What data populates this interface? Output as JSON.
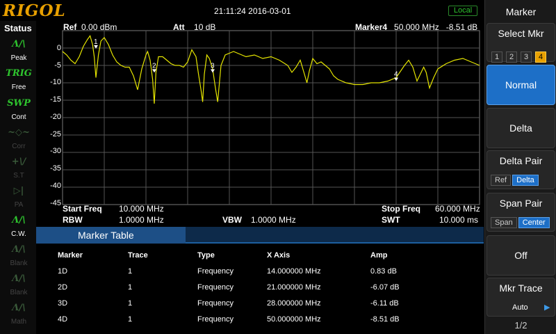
{
  "top": {
    "logo": "RIGOL",
    "datetime": "21:11:24 2016-03-01",
    "local": "Local"
  },
  "status": {
    "title": "Status",
    "items": [
      {
        "icon": "Λ/\\",
        "label": "Peak",
        "state": "on"
      },
      {
        "icon": "TRIG",
        "label": "Free",
        "state": "on"
      },
      {
        "icon": "SWP",
        "label": "Cont",
        "state": "on"
      },
      {
        "icon": "~◇~",
        "label": "Corr",
        "state": "off"
      },
      {
        "icon": "+\\/",
        "label": "S.T",
        "state": "off"
      },
      {
        "icon": "▷|",
        "label": "PA",
        "state": "off"
      },
      {
        "icon": "Λ/\\",
        "label": "C.W.",
        "state": "on"
      },
      {
        "icon": "Λ/\\",
        "label": "Blank",
        "state": "off"
      },
      {
        "icon": "Λ/\\",
        "label": "Blank",
        "state": "off"
      },
      {
        "icon": "Λ/\\",
        "label": "Math",
        "state": "off"
      }
    ]
  },
  "graph": {
    "ref_label": "Ref",
    "ref_value": "0.00 dBm",
    "att_label": "Att",
    "att_value": "10 dB",
    "marker_label": "Marker4",
    "marker_freq": "50.000 MHz",
    "marker_amp": "-8.51 dB",
    "start_label": "Start Freq",
    "start_value": "10.000 MHz",
    "stop_label": "Stop Freq",
    "stop_value": "60.000 MHz",
    "rbw_label": "RBW",
    "rbw_value": "1.0000 MHz",
    "vbw_label": "VBW",
    "vbw_value": "1.0000 MHz",
    "swt_label": "SWT",
    "swt_value": "10.000 ms",
    "y_labels": [
      "0",
      "-5",
      "-10",
      "-15",
      "-20",
      "-25",
      "-30",
      "-35",
      "-40",
      "-45"
    ],
    "trace_color": "#e6e600"
  },
  "chart_data": {
    "type": "line",
    "xlim": [
      10,
      60
    ],
    "ylim": [
      -45,
      5
    ],
    "x_unit": "MHz",
    "y_unit": "dB",
    "series": [
      {
        "x": [
          10,
          10.5,
          11,
          11.5,
          12,
          12.5,
          13,
          13.3,
          13.6,
          13.8,
          14,
          14.3,
          14.6,
          15,
          15.5,
          16,
          16.5,
          17,
          17.5,
          18,
          18.5,
          19,
          19.5,
          20,
          20.2,
          20.5,
          20.8,
          21,
          21.2,
          21.5,
          22,
          22.5,
          23,
          23.5,
          24,
          24.5,
          25,
          25.5,
          26,
          26.3,
          26.6,
          26.8,
          27,
          27.3,
          27.6,
          28,
          28.3,
          28.6,
          29,
          29.5,
          30,
          30.5,
          31,
          32,
          33,
          34,
          35,
          36,
          37,
          37.5,
          38,
          38.5,
          39,
          39.3,
          39.6,
          40,
          40.5,
          41,
          41.5,
          42,
          42.5,
          43,
          44,
          45,
          46,
          47,
          48,
          49,
          50,
          51,
          51.5,
          52,
          52.5,
          53,
          53.3,
          53.6,
          54,
          54.5,
          55,
          56,
          57,
          58,
          59,
          60
        ],
        "y": [
          -1.0,
          -2.0,
          -3.5,
          -4.5,
          -2.5,
          0.5,
          2.5,
          3.5,
          1.0,
          -2.5,
          -8.5,
          -2.0,
          2.0,
          3.0,
          1.0,
          -2.0,
          -4.0,
          -5.0,
          -5.5,
          -5.5,
          -8.0,
          -12.0,
          -6.0,
          -2.0,
          -1.0,
          -3.5,
          -9.0,
          -16.0,
          -7.0,
          -2.5,
          -2.5,
          -3.5,
          -4.5,
          -5.0,
          -5.0,
          -5.5,
          -4.0,
          -0.5,
          -2.5,
          -7.5,
          -12.0,
          -15.5,
          -7.5,
          -2.0,
          -3.0,
          -6.0,
          -11.0,
          -15.5,
          -5.0,
          -2.0,
          -1.5,
          -1.0,
          -1.5,
          -2.5,
          -2.0,
          -3.0,
          -2.5,
          -3.5,
          -5.0,
          -7.0,
          -5.5,
          -3.5,
          -7.5,
          -10.0,
          -6.5,
          -3.0,
          -4.5,
          -4.0,
          -5.0,
          -6.0,
          -8.0,
          -9.0,
          -10.0,
          -10.5,
          -10.5,
          -10.0,
          -10.0,
          -9.5,
          -8.5,
          -5.0,
          -3.5,
          -5.5,
          -9.5,
          -7.0,
          -5.5,
          -7.0,
          -11.5,
          -8.5,
          -6.0,
          -4.5,
          -3.5,
          -3.0,
          -4.0,
          -5.0
        ]
      }
    ],
    "markers": [
      {
        "label": "1",
        "x": 14,
        "y": 0.83
      },
      {
        "label": "2",
        "x": 21,
        "y": -6.07
      },
      {
        "label": "3",
        "x": 28,
        "y": -6.11
      },
      {
        "label": "4",
        "x": 50,
        "y": -8.51
      }
    ]
  },
  "marker_table": {
    "title": "Marker Table",
    "headers": [
      "Marker",
      "Trace",
      "Type",
      "X Axis",
      "Amp"
    ],
    "rows": [
      [
        "1D",
        "1",
        "Frequency",
        "14.000000 MHz",
        "0.83 dB"
      ],
      [
        "2D",
        "1",
        "Frequency",
        "21.000000 MHz",
        "-6.07 dB"
      ],
      [
        "3D",
        "1",
        "Frequency",
        "28.000000 MHz",
        "-6.11 dB"
      ],
      [
        "4D",
        "1",
        "Frequency",
        "50.000000 MHz",
        "-8.51 dB"
      ]
    ]
  },
  "menu": {
    "title": "Marker",
    "select_mkr": "Select Mkr",
    "mkr_options": [
      "1",
      "2",
      "3",
      "4"
    ],
    "normal": "Normal",
    "delta": "Delta",
    "delta_pair": "Delta Pair",
    "delta_pair_ref": "Ref",
    "delta_pair_delta": "Delta",
    "span_pair": "Span Pair",
    "span_pair_span": "Span",
    "span_pair_center": "Center",
    "off": "Off",
    "mkr_trace": "Mkr Trace",
    "mkr_trace_value": "Auto",
    "page": "1/2"
  }
}
